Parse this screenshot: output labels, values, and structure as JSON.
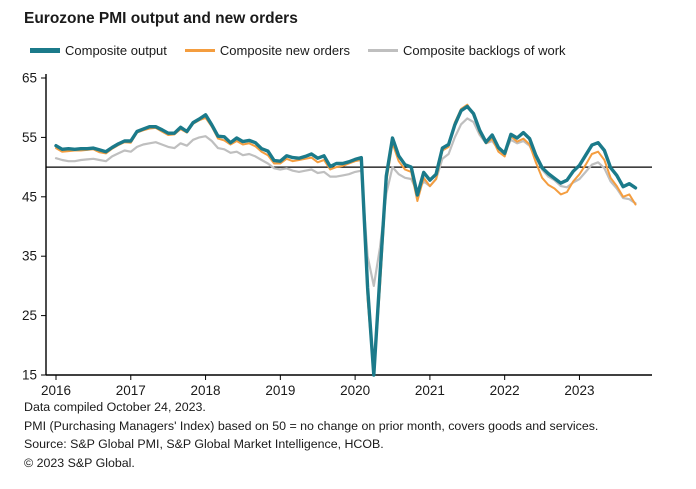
{
  "title": "Eurozone PMI output and new orders",
  "legend": [
    {
      "label": "Composite output"
    },
    {
      "label": "Composite new orders"
    },
    {
      "label": "Composite backlogs of work"
    }
  ],
  "footer": {
    "line1": "Data compiled October 24, 2023.",
    "line2": "PMI (Purchasing Managers' Index) based on 50 = no change on prior month, covers goods and services.",
    "line3": "Source: S&P Global PMI, S&P Global Market Intelligence, HCOB.",
    "line4": "© 2023 S&P Global."
  },
  "chart_data": {
    "type": "line",
    "title": "Eurozone PMI output and new orders",
    "frequency": "monthly",
    "x_start": "2016-01",
    "x_end": "2023-10",
    "x_axis_months": 96,
    "ylim": [
      15,
      65
    ],
    "y_ticks": [
      15,
      25,
      35,
      45,
      55,
      65
    ],
    "x_tick_labels": [
      "2016",
      "2017",
      "2018",
      "2019",
      "2020",
      "2021",
      "2022",
      "2023"
    ],
    "reference_line": 50,
    "grid": false,
    "legend_position": "top",
    "series": [
      {
        "name": "Composite output",
        "color": "#1B7A8A",
        "width": 3.4,
        "values": [
          53.6,
          53.0,
          53.1,
          53.0,
          53.1,
          53.1,
          53.2,
          52.9,
          52.6,
          53.3,
          53.9,
          54.4,
          54.4,
          56.0,
          56.4,
          56.8,
          56.8,
          56.3,
          55.7,
          55.7,
          56.7,
          56.0,
          57.5,
          58.1,
          58.8,
          57.1,
          55.2,
          55.1,
          54.1,
          54.9,
          54.3,
          54.5,
          54.1,
          53.1,
          52.7,
          51.1,
          51.0,
          51.9,
          51.6,
          51.5,
          51.8,
          52.2,
          51.5,
          51.9,
          50.1,
          50.6,
          50.6,
          50.9,
          51.3,
          51.6,
          29.7,
          13.6,
          31.9,
          48.5,
          54.9,
          51.9,
          50.4,
          50.0,
          45.3,
          49.1,
          47.8,
          48.8,
          53.2,
          53.8,
          57.1,
          59.5,
          60.2,
          59.0,
          56.2,
          54.2,
          55.4,
          53.3,
          52.3,
          55.5,
          54.9,
          55.8,
          54.8,
          52.0,
          49.9,
          48.9,
          48.1,
          47.3,
          47.8,
          49.3,
          50.3,
          52.0,
          53.7,
          54.1,
          52.8,
          49.9,
          48.6,
          46.7,
          47.2,
          46.5
        ]
      },
      {
        "name": "Composite new orders",
        "color": "#F49D3F",
        "width": 2.0,
        "values": [
          53.2,
          52.6,
          52.7,
          52.8,
          52.8,
          52.9,
          53.0,
          52.5,
          52.3,
          53.1,
          53.7,
          54.2,
          54.1,
          55.8,
          56.2,
          56.5,
          56.6,
          56.0,
          55.4,
          55.5,
          56.4,
          55.8,
          57.3,
          57.9,
          58.3,
          56.8,
          54.8,
          54.5,
          53.8,
          54.4,
          53.8,
          54.0,
          53.5,
          52.6,
          52.0,
          50.6,
          50.6,
          51.4,
          51.0,
          51.2,
          51.4,
          51.6,
          50.8,
          51.2,
          49.6,
          50.0,
          50.2,
          50.6,
          51.0,
          51.2,
          27.8,
          12.8,
          29.8,
          47.5,
          54.0,
          51.0,
          49.6,
          49.2,
          44.3,
          48.2,
          46.8,
          48.0,
          52.8,
          53.4,
          57.5,
          59.8,
          60.5,
          58.8,
          55.8,
          54.0,
          54.8,
          52.6,
          51.8,
          55.2,
          54.3,
          54.8,
          53.8,
          50.8,
          48.2,
          47.0,
          46.4,
          45.4,
          45.8,
          47.6,
          48.8,
          50.4,
          52.2,
          52.6,
          51.2,
          48.2,
          46.8,
          45.0,
          45.4,
          43.7
        ]
      },
      {
        "name": "Composite backlogs of work",
        "color": "#BFBFBF",
        "width": 2.2,
        "values": [
          51.5,
          51.2,
          51.0,
          51.0,
          51.2,
          51.3,
          51.4,
          51.2,
          51.0,
          51.8,
          52.3,
          52.8,
          52.6,
          53.4,
          53.8,
          54.0,
          54.2,
          53.8,
          53.4,
          53.2,
          54.0,
          53.6,
          54.6,
          55.0,
          55.2,
          54.4,
          53.2,
          53.0,
          52.4,
          52.6,
          52.0,
          52.2,
          51.8,
          51.2,
          50.6,
          49.8,
          49.6,
          49.8,
          49.4,
          49.2,
          49.4,
          49.6,
          49.0,
          49.2,
          48.4,
          48.4,
          48.6,
          48.8,
          49.2,
          49.4,
          35.0,
          30.0,
          36.5,
          45.5,
          50.0,
          48.8,
          48.2,
          48.0,
          45.8,
          47.6,
          46.8,
          48.0,
          51.4,
          52.2,
          55.0,
          57.2,
          58.2,
          57.6,
          55.4,
          54.0,
          54.4,
          53.0,
          52.4,
          54.6,
          54.0,
          54.4,
          53.6,
          51.6,
          49.6,
          48.4,
          47.8,
          46.8,
          46.6,
          47.4,
          48.0,
          49.2,
          50.4,
          50.8,
          49.8,
          47.6,
          46.4,
          44.8,
          44.6,
          43.9
        ]
      }
    ]
  }
}
